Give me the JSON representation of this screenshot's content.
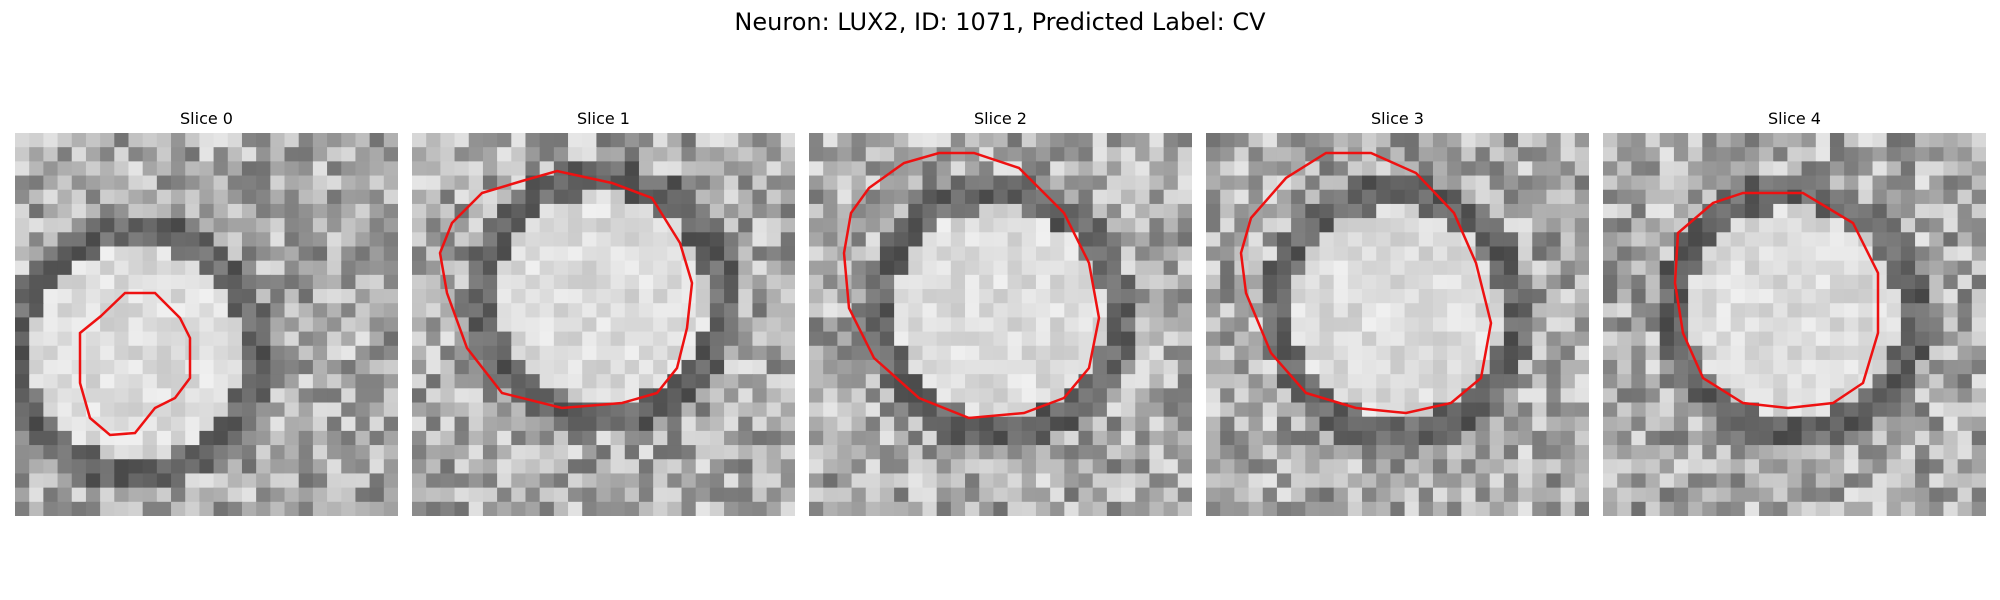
{
  "figure": {
    "title": "Neuron: LUX2, ID: 1071, Predicted Label: CV"
  },
  "colors": {
    "contour": "#ee1111",
    "background": "#ffffff"
  },
  "panels": [
    {
      "title": "Slice 0",
      "image": "grayscale-em-crop",
      "overlay": "red-contour"
    },
    {
      "title": "Slice 1",
      "image": "grayscale-em-crop",
      "overlay": "red-contour"
    },
    {
      "title": "Slice 2",
      "image": "grayscale-em-crop",
      "overlay": "red-contour"
    },
    {
      "title": "Slice 3",
      "image": "grayscale-em-crop",
      "overlay": "red-contour"
    },
    {
      "title": "Slice 4",
      "image": "grayscale-em-crop",
      "overlay": "red-contour"
    }
  ]
}
